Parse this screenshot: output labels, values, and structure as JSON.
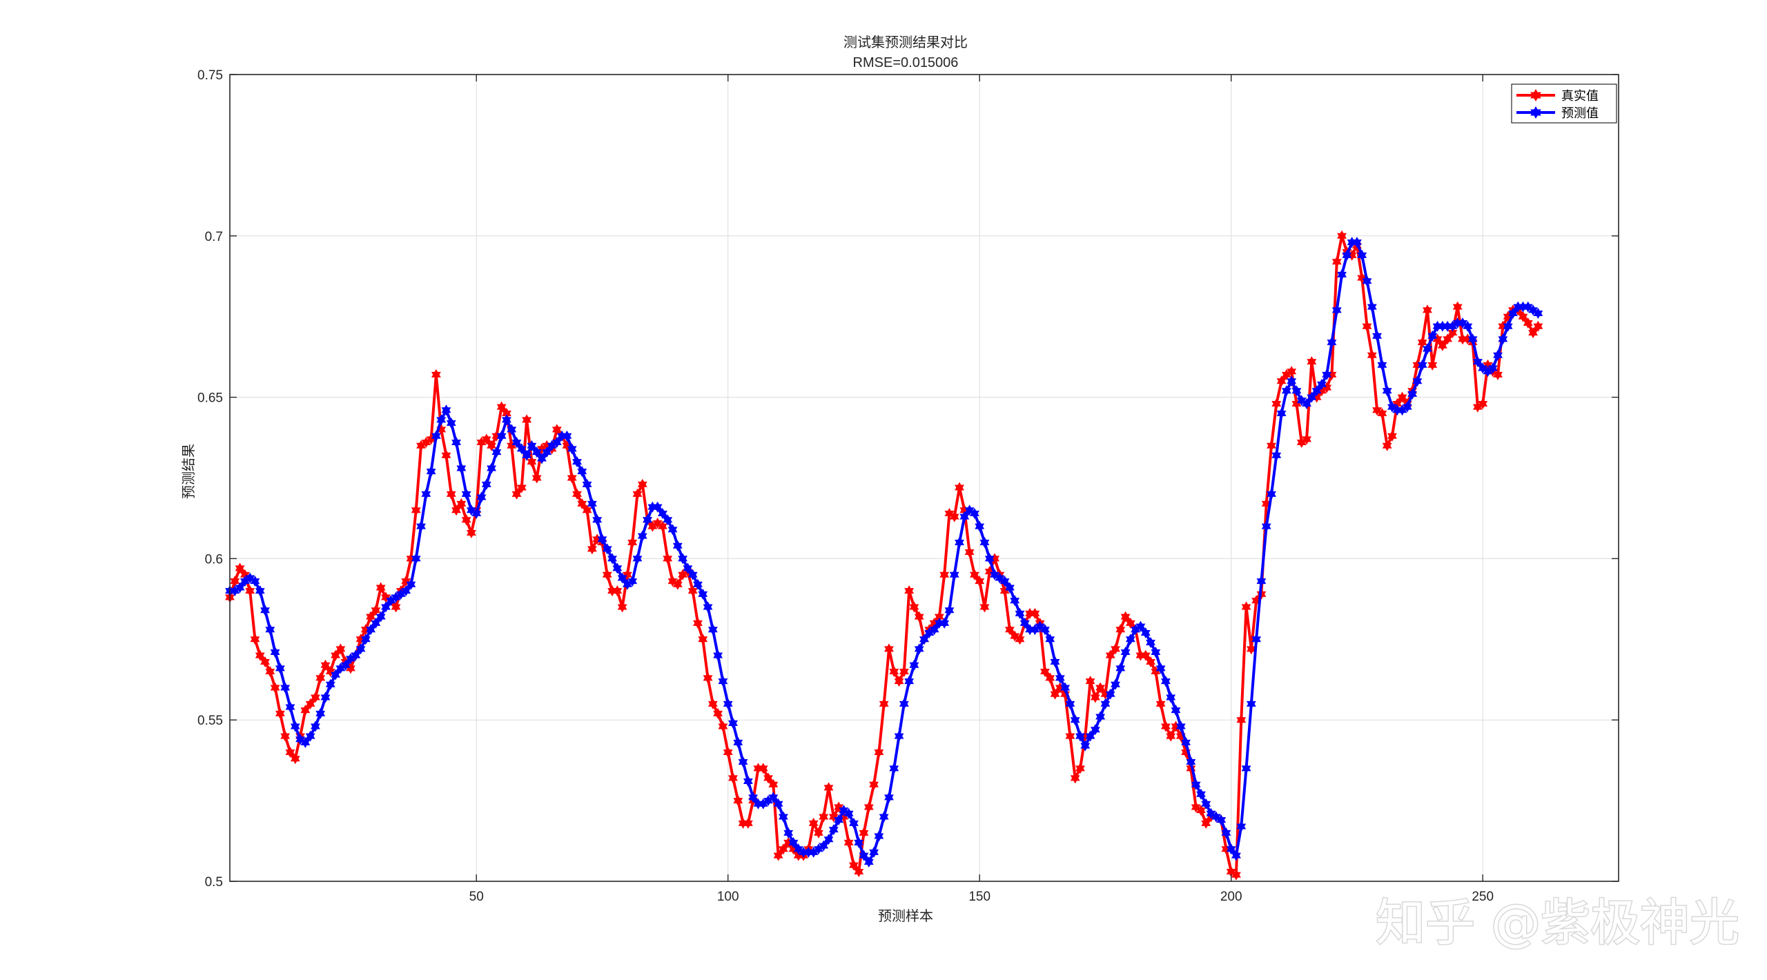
{
  "chart_data": {
    "type": "line",
    "title": "测试集预测结果对比",
    "subtitle": "RMSE=0.015006",
    "xlabel": "预测样本",
    "ylabel": "预测结果",
    "xlim": [
      1,
      277
    ],
    "ylim": [
      0.5,
      0.75
    ],
    "xticks": [
      50,
      100,
      150,
      200,
      250
    ],
    "yticks": [
      0.5,
      0.55,
      0.6,
      0.65,
      0.7,
      0.75
    ],
    "xtick_labels": [
      "50",
      "100",
      "150",
      "200",
      "250"
    ],
    "ytick_labels": [
      "0.5",
      "0.55",
      "0.6",
      "0.65",
      "0.7",
      "0.75"
    ],
    "grid": true,
    "legend_position": "top-right",
    "marker": "hexagram",
    "series": [
      {
        "name": "真实值",
        "color": "#ff0000",
        "x_start": 1,
        "values": [
          0.588,
          0.593,
          0.597,
          0.595,
          0.59,
          0.575,
          0.57,
          0.568,
          0.565,
          0.56,
          0.552,
          0.545,
          0.54,
          0.538,
          0.545,
          0.553,
          0.555,
          0.557,
          0.563,
          0.567,
          0.565,
          0.57,
          0.572,
          0.568,
          0.566,
          0.57,
          0.575,
          0.578,
          0.582,
          0.584,
          0.591,
          0.588,
          0.587,
          0.585,
          0.59,
          0.593,
          0.6,
          0.615,
          0.635,
          0.636,
          0.637,
          0.657,
          0.64,
          0.632,
          0.62,
          0.615,
          0.617,
          0.612,
          0.608,
          0.615,
          0.636,
          0.637,
          0.635,
          0.638,
          0.647,
          0.645,
          0.635,
          0.62,
          0.622,
          0.643,
          0.63,
          0.625,
          0.634,
          0.635,
          0.634,
          0.64,
          0.638,
          0.635,
          0.625,
          0.62,
          0.617,
          0.615,
          0.603,
          0.606,
          0.605,
          0.595,
          0.59,
          0.59,
          0.585,
          0.595,
          0.605,
          0.62,
          0.623,
          0.612,
          0.61,
          0.611,
          0.61,
          0.6,
          0.593,
          0.592,
          0.595,
          0.596,
          0.59,
          0.58,
          0.575,
          0.563,
          0.555,
          0.552,
          0.548,
          0.54,
          0.532,
          0.525,
          0.518,
          0.518,
          0.525,
          0.535,
          0.535,
          0.532,
          0.53,
          0.508,
          0.51,
          0.512,
          0.51,
          0.508,
          0.508,
          0.51,
          0.518,
          0.515,
          0.52,
          0.529,
          0.52,
          0.523,
          0.52,
          0.512,
          0.505,
          0.503,
          0.515,
          0.523,
          0.53,
          0.54,
          0.555,
          0.572,
          0.565,
          0.562,
          0.565,
          0.59,
          0.585,
          0.582,
          0.575,
          0.578,
          0.58,
          0.582,
          0.595,
          0.614,
          0.613,
          0.622,
          0.615,
          0.602,
          0.595,
          0.593,
          0.585,
          0.596,
          0.6,
          0.595,
          0.59,
          0.578,
          0.576,
          0.575,
          0.58,
          0.583,
          0.583,
          0.58,
          0.565,
          0.563,
          0.558,
          0.56,
          0.558,
          0.545,
          0.532,
          0.535,
          0.545,
          0.562,
          0.557,
          0.56,
          0.558,
          0.57,
          0.572,
          0.578,
          0.582,
          0.58,
          0.578,
          0.57,
          0.57,
          0.568,
          0.565,
          0.555,
          0.548,
          0.545,
          0.548,
          0.545,
          0.54,
          0.535,
          0.523,
          0.522,
          0.518,
          0.52,
          0.52,
          0.519,
          0.51,
          0.503,
          0.502,
          0.55,
          0.585,
          0.572,
          0.587,
          0.589,
          0.617,
          0.635,
          0.648,
          0.655,
          0.657,
          0.658,
          0.648,
          0.636,
          0.637,
          0.661,
          0.65,
          0.652,
          0.653,
          0.657,
          0.692,
          0.7,
          0.695,
          0.694,
          0.697,
          0.687,
          0.672,
          0.663,
          0.646,
          0.645,
          0.635,
          0.638,
          0.648,
          0.65,
          0.648,
          0.652,
          0.66,
          0.667,
          0.677,
          0.66,
          0.668,
          0.666,
          0.668,
          0.67,
          0.678,
          0.668,
          0.668,
          0.667,
          0.647,
          0.648,
          0.66,
          0.658,
          0.657,
          0.672,
          0.675,
          0.677,
          0.677,
          0.675,
          0.673,
          0.67,
          0.672
        ]
      },
      {
        "name": "预测值",
        "color": "#0000ff",
        "x_start": 1,
        "values": [
          0.59,
          0.59,
          0.591,
          0.593,
          0.594,
          0.593,
          0.59,
          0.584,
          0.578,
          0.571,
          0.566,
          0.56,
          0.554,
          0.548,
          0.544,
          0.543,
          0.545,
          0.548,
          0.552,
          0.557,
          0.561,
          0.564,
          0.566,
          0.567,
          0.569,
          0.57,
          0.572,
          0.575,
          0.578,
          0.58,
          0.582,
          0.585,
          0.587,
          0.588,
          0.589,
          0.59,
          0.592,
          0.6,
          0.61,
          0.62,
          0.627,
          0.638,
          0.643,
          0.646,
          0.642,
          0.636,
          0.628,
          0.62,
          0.615,
          0.614,
          0.619,
          0.623,
          0.628,
          0.633,
          0.638,
          0.643,
          0.64,
          0.636,
          0.634,
          0.632,
          0.635,
          0.633,
          0.631,
          0.633,
          0.635,
          0.636,
          0.638,
          0.638,
          0.634,
          0.63,
          0.627,
          0.623,
          0.617,
          0.612,
          0.606,
          0.603,
          0.6,
          0.597,
          0.594,
          0.592,
          0.593,
          0.6,
          0.607,
          0.612,
          0.616,
          0.616,
          0.614,
          0.612,
          0.609,
          0.604,
          0.6,
          0.597,
          0.595,
          0.592,
          0.589,
          0.585,
          0.578,
          0.57,
          0.562,
          0.555,
          0.549,
          0.543,
          0.537,
          0.531,
          0.526,
          0.524,
          0.524,
          0.525,
          0.526,
          0.524,
          0.52,
          0.515,
          0.512,
          0.51,
          0.509,
          0.509,
          0.509,
          0.51,
          0.511,
          0.513,
          0.516,
          0.519,
          0.522,
          0.521,
          0.518,
          0.512,
          0.508,
          0.506,
          0.509,
          0.514,
          0.52,
          0.526,
          0.535,
          0.545,
          0.555,
          0.562,
          0.567,
          0.572,
          0.575,
          0.577,
          0.578,
          0.58,
          0.58,
          0.584,
          0.595,
          0.605,
          0.613,
          0.615,
          0.614,
          0.61,
          0.605,
          0.6,
          0.595,
          0.594,
          0.593,
          0.591,
          0.587,
          0.583,
          0.58,
          0.578,
          0.578,
          0.579,
          0.578,
          0.575,
          0.568,
          0.563,
          0.56,
          0.555,
          0.55,
          0.545,
          0.542,
          0.545,
          0.547,
          0.551,
          0.555,
          0.558,
          0.561,
          0.566,
          0.571,
          0.575,
          0.578,
          0.579,
          0.577,
          0.574,
          0.571,
          0.566,
          0.562,
          0.557,
          0.553,
          0.548,
          0.543,
          0.537,
          0.53,
          0.527,
          0.524,
          0.521,
          0.52,
          0.519,
          0.515,
          0.51,
          0.508,
          0.517,
          0.535,
          0.555,
          0.575,
          0.593,
          0.61,
          0.62,
          0.632,
          0.645,
          0.652,
          0.655,
          0.652,
          0.649,
          0.648,
          0.65,
          0.652,
          0.654,
          0.657,
          0.667,
          0.677,
          0.688,
          0.694,
          0.698,
          0.698,
          0.694,
          0.686,
          0.678,
          0.669,
          0.66,
          0.652,
          0.647,
          0.646,
          0.646,
          0.647,
          0.651,
          0.655,
          0.66,
          0.665,
          0.669,
          0.672,
          0.672,
          0.672,
          0.672,
          0.673,
          0.673,
          0.672,
          0.668,
          0.661,
          0.659,
          0.658,
          0.659,
          0.663,
          0.668,
          0.672,
          0.676,
          0.678,
          0.678,
          0.678,
          0.677,
          0.676
        ]
      }
    ]
  },
  "watermark": "知乎 @紫极神光"
}
